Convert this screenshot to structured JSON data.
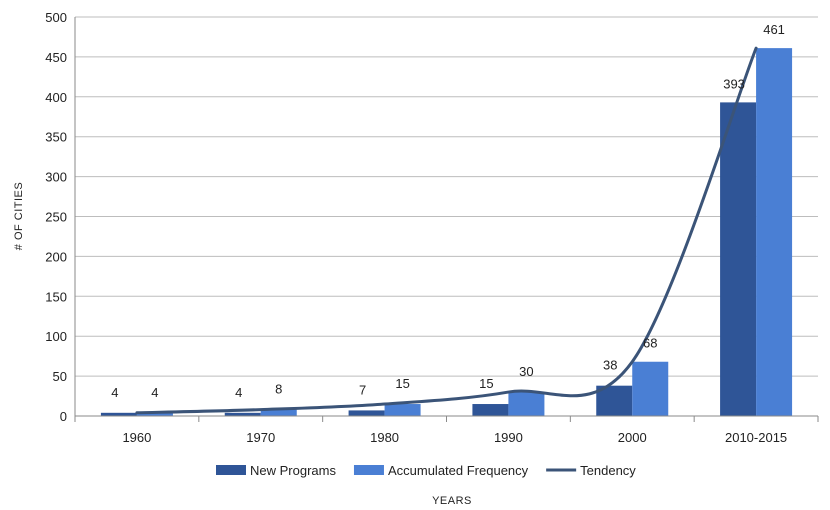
{
  "chart_data": {
    "type": "bar",
    "categories": [
      "1960",
      "1970",
      "1980",
      "1990",
      "2000",
      "2010-2015"
    ],
    "series": [
      {
        "name": "New Programs",
        "type": "bar",
        "color": "#2f5597",
        "values": [
          4,
          4,
          7,
          15,
          38,
          393
        ]
      },
      {
        "name": "Accumulated Frequency",
        "type": "bar",
        "color": "#4a7fd4",
        "values": [
          4,
          8,
          15,
          30,
          68,
          461
        ]
      },
      {
        "name": "Tendency",
        "type": "line",
        "color": "#3b5478",
        "values": [
          4,
          8,
          15,
          30,
          68,
          461
        ]
      }
    ],
    "xlabel": "YEARS",
    "ylabel": "# OF CITIES",
    "ylim": [
      0,
      500
    ],
    "yticks": [
      0,
      50,
      100,
      150,
      200,
      250,
      300,
      350,
      400,
      450,
      500
    ],
    "grid": true,
    "legend_position": "bottom"
  }
}
